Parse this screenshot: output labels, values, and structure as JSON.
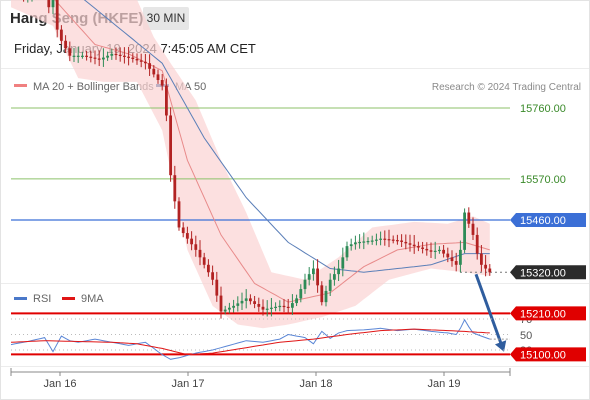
{
  "header": {
    "title": "Hang Seng (HKFE)",
    "timeframe": "30 MIN",
    "datetime": "Friday, January 19, 2024 7:45:05 AM CET"
  },
  "price_panel": {
    "legend": [
      {
        "label": "MA 20 + Bollinger Bands",
        "color": "#f08080"
      },
      {
        "label": "MA 50",
        "color": "#2f5d9e"
      }
    ],
    "credit": "Research © 2024 Trading Central",
    "levels": [
      {
        "label": "15760.00",
        "value": 15760,
        "kind": "resistance-green"
      },
      {
        "label": "15570.00",
        "value": 15570,
        "kind": "resistance-green"
      },
      {
        "label": "15460.00",
        "value": 15460,
        "kind": "pivot-blue"
      },
      {
        "label": "15320.00",
        "value": 15320,
        "kind": "last-price"
      },
      {
        "label": "15210.00",
        "value": 15210,
        "kind": "support-red"
      },
      {
        "label": "15100.00",
        "value": 15100,
        "kind": "support-red"
      }
    ]
  },
  "rsi_panel": {
    "legend": [
      {
        "label": "RSI",
        "color": "#4a78c9"
      },
      {
        "label": "9MA",
        "color": "#e01515"
      }
    ],
    "ticks": [
      "70",
      "50",
      "30"
    ]
  },
  "x_axis": {
    "ticks": [
      "Jan 16",
      "Jan 17",
      "Jan 18",
      "Jan 19"
    ]
  },
  "colors": {
    "up": "#2e8b57",
    "down": "#b22222",
    "support": "#e00000",
    "pivot": "#3b6fd6",
    "resistance": "#8cc26a",
    "last": "#2b2b2b",
    "arrow": "#2f5d9e"
  },
  "chart_data": {
    "type": "candlestick",
    "title": "Hang Seng (HKFE)",
    "timeframe": "30 MIN",
    "x_ticks": [
      "Jan 16",
      "Jan 17",
      "Jan 18",
      "Jan 19"
    ],
    "price_range": [
      15050,
      16250
    ],
    "close_path": [
      [
        0,
        16080
      ],
      [
        3,
        16060
      ],
      [
        6,
        16075
      ],
      [
        8,
        16070
      ],
      [
        9,
        16030
      ],
      [
        10,
        16120
      ],
      [
        11,
        15970
      ],
      [
        12,
        15940
      ],
      [
        14,
        15900
      ],
      [
        17,
        15900
      ],
      [
        21,
        15890
      ],
      [
        24,
        15905
      ],
      [
        28,
        15895
      ],
      [
        32,
        15880
      ],
      [
        34,
        15850
      ],
      [
        36,
        15820
      ],
      [
        37,
        15740
      ],
      [
        38,
        15580
      ],
      [
        40,
        15440
      ],
      [
        44,
        15380
      ],
      [
        48,
        15300
      ],
      [
        50,
        15215
      ],
      [
        53,
        15230
      ],
      [
        56,
        15250
      ],
      [
        58,
        15235
      ],
      [
        60,
        15220
      ],
      [
        64,
        15230
      ],
      [
        66,
        15225
      ],
      [
        68,
        15250
      ],
      [
        70,
        15300
      ],
      [
        72,
        15330
      ],
      [
        74,
        15240
      ],
      [
        76,
        15300
      ],
      [
        78,
        15330
      ],
      [
        80,
        15390
      ],
      [
        82,
        15400
      ],
      [
        86,
        15405
      ],
      [
        88,
        15410
      ],
      [
        92,
        15405
      ],
      [
        96,
        15390
      ],
      [
        100,
        15375
      ],
      [
        102,
        15380
      ],
      [
        104,
        15360
      ],
      [
        106,
        15340
      ],
      [
        107,
        15380
      ],
      [
        108,
        15480
      ],
      [
        109,
        15450
      ],
      [
        110,
        15420
      ],
      [
        111,
        15370
      ],
      [
        112,
        15340
      ],
      [
        114,
        15320
      ]
    ],
    "ma20_path": [
      [
        0,
        16070
      ],
      [
        8,
        16080
      ],
      [
        12,
        16030
      ],
      [
        20,
        15930
      ],
      [
        28,
        15905
      ],
      [
        36,
        15860
      ],
      [
        42,
        15620
      ],
      [
        50,
        15420
      ],
      [
        58,
        15290
      ],
      [
        66,
        15240
      ],
      [
        76,
        15265
      ],
      [
        84,
        15335
      ],
      [
        92,
        15380
      ],
      [
        100,
        15395
      ],
      [
        108,
        15400
      ],
      [
        114,
        15380
      ]
    ],
    "bollinger_upper_path": [
      [
        0,
        16110
      ],
      [
        10,
        16150
      ],
      [
        16,
        16200
      ],
      [
        22,
        16180
      ],
      [
        28,
        16100
      ],
      [
        34,
        15950
      ],
      [
        38,
        15880
      ],
      [
        44,
        15780
      ],
      [
        50,
        15620
      ],
      [
        56,
        15480
      ],
      [
        62,
        15320
      ],
      [
        70,
        15300
      ],
      [
        78,
        15360
      ],
      [
        86,
        15440
      ],
      [
        96,
        15455
      ],
      [
        104,
        15450
      ],
      [
        110,
        15470
      ],
      [
        114,
        15450
      ]
    ],
    "bollinger_lower_path": [
      [
        0,
        16030
      ],
      [
        10,
        15980
      ],
      [
        16,
        15840
      ],
      [
        22,
        15830
      ],
      [
        30,
        15830
      ],
      [
        36,
        15700
      ],
      [
        42,
        15380
      ],
      [
        48,
        15230
      ],
      [
        54,
        15180
      ],
      [
        60,
        15170
      ],
      [
        66,
        15180
      ],
      [
        74,
        15200
      ],
      [
        82,
        15230
      ],
      [
        90,
        15300
      ],
      [
        100,
        15330
      ],
      [
        108,
        15320
      ],
      [
        114,
        15310
      ]
    ],
    "ma50_path": [
      [
        0,
        16130
      ],
      [
        12,
        16100
      ],
      [
        24,
        15990
      ],
      [
        36,
        15880
      ],
      [
        46,
        15680
      ],
      [
        56,
        15520
      ],
      [
        66,
        15400
      ],
      [
        76,
        15330
      ],
      [
        84,
        15320
      ],
      [
        92,
        15330
      ],
      [
        100,
        15340
      ],
      [
        108,
        15370
      ],
      [
        114,
        15370
      ]
    ],
    "rsi_range": [
      10,
      90
    ],
    "rsi_path": [
      [
        0,
        37
      ],
      [
        4,
        41
      ],
      [
        8,
        46
      ],
      [
        10,
        28
      ],
      [
        12,
        48
      ],
      [
        14,
        42
      ],
      [
        16,
        40
      ],
      [
        20,
        44
      ],
      [
        24,
        40
      ],
      [
        28,
        36
      ],
      [
        32,
        40
      ],
      [
        34,
        32
      ],
      [
        36,
        24
      ],
      [
        38,
        18
      ],
      [
        40,
        20
      ],
      [
        44,
        26
      ],
      [
        48,
        30
      ],
      [
        52,
        36
      ],
      [
        56,
        42
      ],
      [
        60,
        40
      ],
      [
        64,
        44
      ],
      [
        66,
        50
      ],
      [
        70,
        46
      ],
      [
        72,
        38
      ],
      [
        74,
        54
      ],
      [
        76,
        45
      ],
      [
        78,
        52
      ],
      [
        80,
        55
      ],
      [
        84,
        56
      ],
      [
        88,
        58
      ],
      [
        92,
        55
      ],
      [
        96,
        57
      ],
      [
        100,
        54
      ],
      [
        104,
        52
      ],
      [
        106,
        50
      ],
      [
        107,
        58
      ],
      [
        108,
        69
      ],
      [
        109,
        60
      ],
      [
        110,
        52
      ],
      [
        112,
        48
      ],
      [
        114,
        44
      ]
    ],
    "rsi_9ma_path": [
      [
        0,
        40
      ],
      [
        8,
        42
      ],
      [
        16,
        41
      ],
      [
        24,
        40
      ],
      [
        30,
        38
      ],
      [
        36,
        32
      ],
      [
        42,
        24
      ],
      [
        48,
        26
      ],
      [
        56,
        33
      ],
      [
        64,
        40
      ],
      [
        72,
        44
      ],
      [
        80,
        50
      ],
      [
        88,
        55
      ],
      [
        96,
        57
      ],
      [
        104,
        55
      ],
      [
        108,
        54
      ],
      [
        114,
        52
      ]
    ],
    "forecast": {
      "from": 15320,
      "to": 15150,
      "direction": "down"
    }
  }
}
